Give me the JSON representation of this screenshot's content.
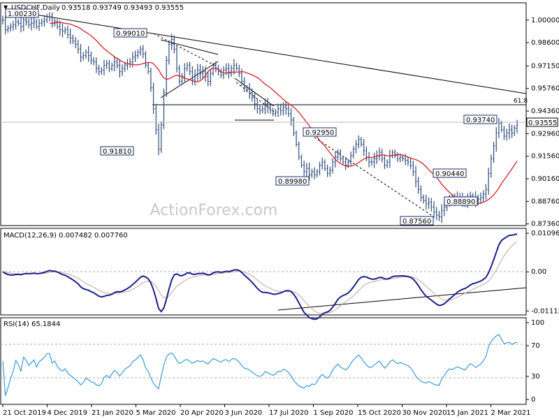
{
  "header": {
    "symbol": "USDCHF,Daily",
    "ohlc": "0.93518 0.93749 0.93493 0.93555"
  },
  "watermark": "ActionForex.com",
  "colors": {
    "bars": "#2d4a7a",
    "ma": "#d4202a",
    "macd": "#1a1f8a",
    "signal": "#c8a0a0",
    "rsi": "#3a9ad9",
    "box_border": "#1a2a6a"
  },
  "chart_data": [
    {
      "type": "candlestick",
      "name": "price",
      "ylim": [
        0.8756,
        1.0038
      ],
      "yticks": [
        "1.00000",
        "0.98600",
        "0.97150",
        "0.95760",
        "0.94360",
        "0.92960",
        "0.91560",
        "0.90160",
        "0.88760",
        "0.87360"
      ],
      "current_price": "0.93555",
      "fib_label": "61.8",
      "fib_level": 0.9465,
      "x_labels": [
        "21 Oct 2019",
        "4 Dec 2019",
        "21 Jan 2020",
        "5 Mar 2020",
        "20 Apr 2020",
        "3 Jun 2020",
        "17 Jul 2020",
        "1 Sep 2020",
        "15 Oct 2020",
        "30 Nov 2020",
        "15 Jan 2021",
        "2 Mar 2021"
      ],
      "close_path": [
        1.0,
        0.994,
        0.995,
        0.996,
        0.997,
        0.999,
        0.998,
        0.996,
        1.0,
        0.999,
        0.997,
        0.998,
        0.999,
        0.996,
        0.998,
        0.999,
        1.0,
        1.002,
        1.002,
        0.998,
        0.999,
        0.996,
        0.994,
        0.993,
        0.994,
        0.991,
        0.989,
        0.987,
        0.985,
        0.982,
        0.977,
        0.978,
        0.98,
        0.978,
        0.975,
        0.974,
        0.97,
        0.968,
        0.969,
        0.972,
        0.973,
        0.97,
        0.972,
        0.974,
        0.972,
        0.968,
        0.97,
        0.972,
        0.973,
        0.974,
        0.977,
        0.978,
        0.98,
        0.982,
        0.979,
        0.972,
        0.968,
        0.958,
        0.945,
        0.932,
        0.92,
        0.935,
        0.955,
        0.975,
        0.985,
        0.988,
        0.982,
        0.97,
        0.962,
        0.965,
        0.97,
        0.972,
        0.968,
        0.963,
        0.966,
        0.969,
        0.967,
        0.968,
        0.965,
        0.962,
        0.967,
        0.972,
        0.97,
        0.968,
        0.966,
        0.969,
        0.97,
        0.967,
        0.97,
        0.972,
        0.97,
        0.967,
        0.962,
        0.958,
        0.957,
        0.955,
        0.952,
        0.948,
        0.945,
        0.944,
        0.945,
        0.948,
        0.946,
        0.944,
        0.942,
        0.943,
        0.945,
        0.944,
        0.946,
        0.945,
        0.942,
        0.938,
        0.93,
        0.923,
        0.915,
        0.91,
        0.906,
        0.908,
        0.904,
        0.906,
        0.904,
        0.906,
        0.91,
        0.912,
        0.908,
        0.905,
        0.907,
        0.912,
        0.915,
        0.918,
        0.914,
        0.912,
        0.91,
        0.912,
        0.916,
        0.92,
        0.923,
        0.926,
        0.923,
        0.919,
        0.915,
        0.912,
        0.912,
        0.914,
        0.916,
        0.918,
        0.914,
        0.91,
        0.912,
        0.916,
        0.918,
        0.916,
        0.914,
        0.915,
        0.914,
        0.913,
        0.912,
        0.91,
        0.906,
        0.9,
        0.895,
        0.89,
        0.888,
        0.886,
        0.887,
        0.884,
        0.881,
        0.879,
        0.878,
        0.882,
        0.884,
        0.887,
        0.889,
        0.888,
        0.889,
        0.89,
        0.889,
        0.888,
        0.887,
        0.889,
        0.891,
        0.89,
        0.888,
        0.889,
        0.89,
        0.892,
        0.895,
        0.905,
        0.914,
        0.922,
        0.93,
        0.936,
        0.932,
        0.928,
        0.93,
        0.932,
        0.93,
        0.933,
        0.935
      ]
    },
    {
      "type": "line",
      "name": "MACD(12,26,9) 0.007482 0.007760",
      "ylim": [
        -0.01127,
        0.010967
      ],
      "yticks": [
        "0.010967",
        "0.00",
        "-0.011127"
      ]
    },
    {
      "type": "line",
      "name": "RSI(14) 65.1844",
      "ylim": [
        0,
        100
      ],
      "yticks": [
        "100",
        "70",
        "30",
        "0"
      ]
    }
  ],
  "annotations": {
    "price_boxes": [
      "1.00230",
      "0.99010",
      "0.91810",
      "0.92950",
      "0.89980",
      "0.93740",
      "0.90440",
      "0.88890",
      "0.87560"
    ]
  }
}
